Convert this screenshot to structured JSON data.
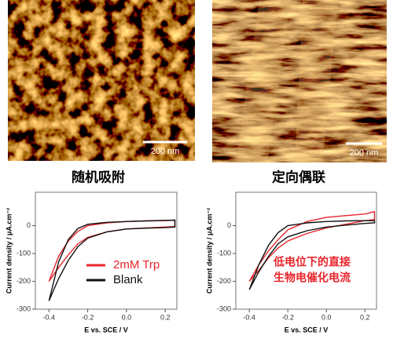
{
  "images": [
    {
      "scale_bar": "200 nm"
    },
    {
      "scale_bar": "200 nm"
    }
  ],
  "chart_data": [
    {
      "type": "line",
      "title": "随机吸附",
      "xlabel": "E vs. SCE / V",
      "ylabel": "Current density / μA.cm⁻²",
      "xlim": [
        -0.47,
        0.26
      ],
      "ylim": [
        -300,
        120
      ],
      "xticks": [
        -0.4,
        -0.2,
        {
          "value": 0,
          "label": "0.0"
        },
        0.2
      ],
      "yticks": [
        0,
        -100,
        -200,
        -300
      ],
      "legend": "lower right",
      "series": [
        {
          "name": "2mM Trp",
          "color": "#e8252b",
          "x": [
            -0.4,
            -0.35,
            -0.3,
            -0.25,
            -0.2,
            -0.1,
            0,
            0.1,
            0.2,
            0.25,
            0.25,
            0.2,
            0.1,
            0,
            -0.1,
            -0.2,
            -0.25,
            -0.3,
            -0.35,
            -0.4
          ],
          "values": [
            -200,
            -110,
            -55,
            -20,
            0,
            10,
            15,
            17,
            18,
            20,
            -3,
            -5,
            -8,
            -12,
            -22,
            -42,
            -65,
            -105,
            -150,
            -200
          ]
        },
        {
          "name": "Blank",
          "color": "#111111",
          "x": [
            -0.4,
            -0.35,
            -0.3,
            -0.25,
            -0.2,
            -0.1,
            0,
            0.1,
            0.2,
            0.25,
            0.25,
            0.2,
            0.1,
            0,
            -0.1,
            -0.2,
            -0.25,
            -0.3,
            -0.35,
            -0.4
          ],
          "values": [
            -270,
            -130,
            -50,
            -10,
            5,
            12,
            15,
            17,
            19,
            20,
            -5,
            -7,
            -9,
            -12,
            -22,
            -45,
            -75,
            -125,
            -190,
            -270
          ]
        }
      ]
    },
    {
      "type": "line",
      "title": "定向偶联",
      "xlabel": "E vs. SCE / V",
      "ylabel": "Current density / μA.cm⁻²",
      "xlim": [
        -0.47,
        0.26
      ],
      "ylim": [
        -300,
        120
      ],
      "xticks": [
        -0.4,
        -0.2,
        {
          "value": 0,
          "label": "0.0"
        },
        0.2
      ],
      "yticks": [
        0,
        -100,
        -200,
        -300
      ],
      "annotation": [
        "低电位下的直接",
        "生物电催化电流"
      ],
      "series": [
        {
          "color": "#e8252b",
          "x": [
            -0.4,
            -0.35,
            -0.3,
            -0.25,
            -0.2,
            -0.1,
            0,
            0.1,
            0.2,
            0.25,
            0.25,
            0.2,
            0.1,
            0,
            -0.1,
            -0.2,
            -0.25,
            -0.3,
            -0.35,
            -0.4
          ],
          "values": [
            -200,
            -140,
            -90,
            -50,
            -15,
            15,
            30,
            36,
            42,
            50,
            22,
            18,
            5,
            -8,
            -28,
            -55,
            -80,
            -115,
            -160,
            -200
          ]
        },
        {
          "color": "#111111",
          "x": [
            -0.4,
            -0.35,
            -0.3,
            -0.25,
            -0.2,
            -0.1,
            0,
            0.1,
            0.2,
            0.25,
            0.25,
            0.2,
            0.1,
            0,
            -0.1,
            -0.2,
            -0.25,
            -0.3,
            -0.35,
            -0.4
          ],
          "values": [
            -230,
            -140,
            -70,
            -25,
            0,
            10,
            15,
            17,
            18,
            18,
            10,
            8,
            2,
            -5,
            -18,
            -40,
            -65,
            -110,
            -165,
            -230
          ]
        }
      ]
    }
  ]
}
